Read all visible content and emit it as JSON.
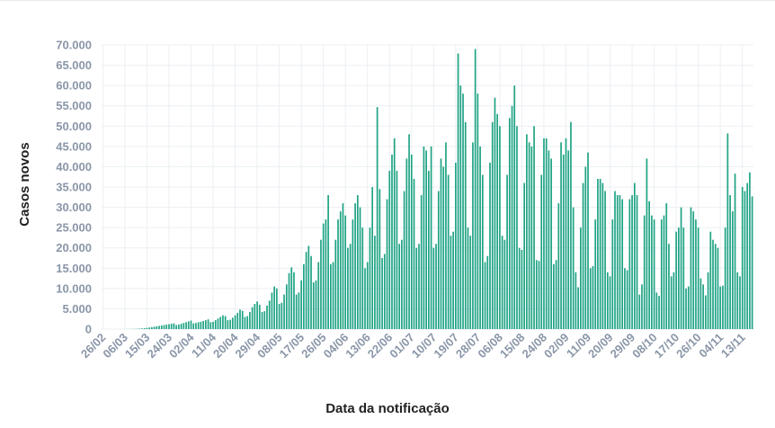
{
  "chart_data": {
    "type": "bar",
    "ylabel": "Casos novos",
    "xlabel": "Data da notificação",
    "ylim": [
      0,
      70000
    ],
    "yticks": [
      0,
      5000,
      10000,
      15000,
      20000,
      25000,
      30000,
      35000,
      40000,
      45000,
      50000,
      55000,
      60000,
      65000,
      70000
    ],
    "ytick_labels": [
      "0",
      "5.000",
      "10.000",
      "15.000",
      "20.000",
      "25.000",
      "30.000",
      "35.000",
      "40.000",
      "45.000",
      "50.000",
      "55.000",
      "60.000",
      "65.000",
      "70.000"
    ],
    "xtick_labels": [
      "26/02",
      "06/03",
      "15/03",
      "24/03",
      "02/04",
      "11/04",
      "20/04",
      "29/04",
      "08/05",
      "17/05",
      "26/05",
      "04/06",
      "13/06",
      "22/06",
      "01/07",
      "10/07",
      "19/07",
      "28/07",
      "06/08",
      "15/08",
      "24/08",
      "02/09",
      "11/09",
      "20/09",
      "29/09",
      "08/10",
      "17/10",
      "26/10",
      "04/11",
      "13/11"
    ],
    "xtick_interval_days": 9,
    "grid": true,
    "bar_color": "#1fa384",
    "values": [
      1,
      0,
      0,
      1,
      0,
      1,
      2,
      3,
      5,
      10,
      15,
      20,
      30,
      50,
      80,
      120,
      160,
      220,
      290,
      380,
      480,
      580,
      700,
      800,
      900,
      1000,
      1100,
      1200,
      1300,
      1400,
      1000,
      1100,
      1300,
      1500,
      1700,
      1900,
      2100,
      1400,
      1500,
      1700,
      1800,
      2000,
      2200,
      2400,
      1700,
      1800,
      2200,
      2600,
      3000,
      3400,
      3200,
      2200,
      2300,
      2800,
      3400,
      4000,
      4800,
      4500,
      3000,
      3200,
      4200,
      5400,
      6200,
      6800,
      6000,
      4200,
      4400,
      5800,
      7000,
      9000,
      10500,
      10000,
      6200,
      6500,
      8500,
      11000,
      13800,
      15200,
      14000,
      8500,
      9000,
      12000,
      16000,
      19000,
      20500,
      18000,
      11500,
      12000,
      16500,
      22000,
      26000,
      27000,
      33000,
      16000,
      16500,
      22000,
      27000,
      29000,
      31000,
      28000,
      20000,
      21000,
      27000,
      31000,
      33000,
      30000,
      25000,
      15000,
      16500,
      25000,
      35000,
      23000,
      54700,
      34500,
      17500,
      18500,
      32000,
      39000,
      43000,
      47000,
      39000,
      21000,
      22000,
      34000,
      42000,
      48000,
      43000,
      37000,
      20000,
      21000,
      33000,
      45000,
      44000,
      39000,
      45000,
      20000,
      21000,
      34000,
      42000,
      40000,
      46000,
      38000,
      23000,
      24000,
      41000,
      67900,
      60000,
      58000,
      51000,
      25000,
      23000,
      46000,
      69000,
      58000,
      45000,
      38000,
      16500,
      18000,
      41000,
      51000,
      57000,
      53000,
      50000,
      23000,
      22000,
      38000,
      52000,
      55000,
      60000,
      50000,
      20000,
      19500,
      36000,
      48000,
      46000,
      45000,
      50000,
      17000,
      16800,
      38000,
      47000,
      47000,
      44000,
      42000,
      16000,
      17000,
      31000,
      46000,
      43000,
      47000,
      44000,
      51000,
      30000,
      14000,
      10300,
      25000,
      36000,
      40000,
      43500,
      15000,
      15500,
      27000,
      37000,
      37000,
      36000,
      34000,
      14000,
      13000,
      27000,
      34000,
      33000,
      33000,
      32000,
      15000,
      14500,
      32000,
      33000,
      36000,
      33000,
      8500,
      11000,
      28000,
      42000,
      31500,
      28000,
      27000,
      9000,
      8200,
      27000,
      28000,
      31000,
      21000,
      13000,
      14000,
      24000,
      25000,
      30000,
      25000,
      10000,
      10500,
      30000,
      29000,
      27000,
      25000,
      12500,
      11000,
      8300,
      14000,
      24000,
      22000,
      21000,
      20000,
      10500,
      10700,
      25000,
      48200,
      33000,
      29000,
      38300,
      14000,
      13000,
      35000,
      34000,
      36000,
      38600,
      32700
    ]
  }
}
